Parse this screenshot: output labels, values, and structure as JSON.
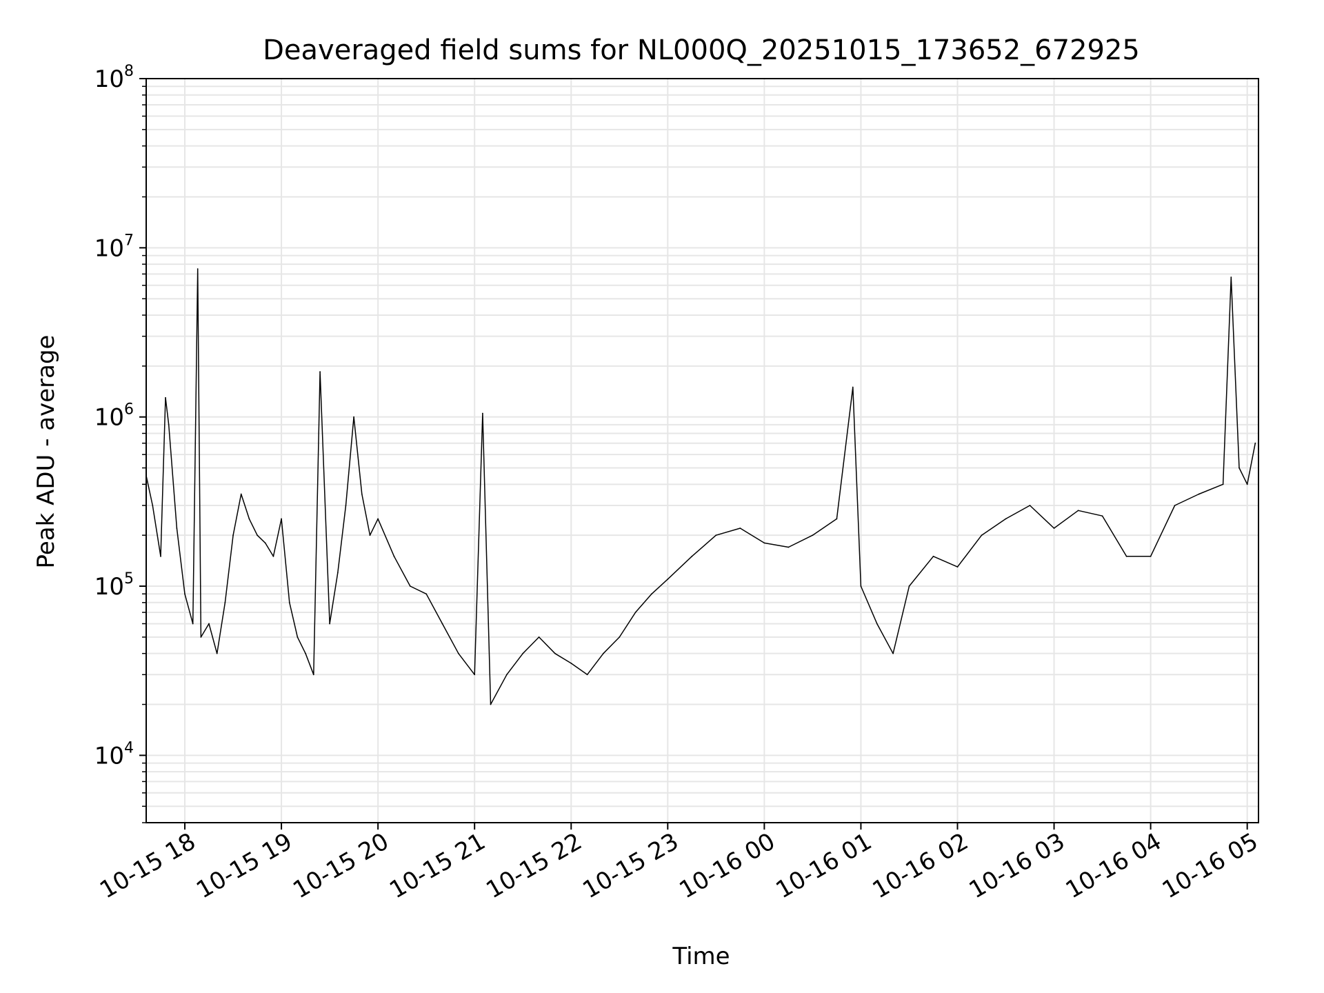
{
  "chart_data": {
    "type": "line",
    "title": "Deaveraged field sums for NL000Q_20251015_173652_672925",
    "xlabel": "Time",
    "ylabel": "Peak ADU - average",
    "y_scale": "log",
    "ylim": [
      4000,
      100000000
    ],
    "xlim": [
      "2025-10-15 17:36",
      "2025-10-16 05:07"
    ],
    "x_ticks": [
      {
        "label": "10-15 18",
        "time": "2025-10-15 18:00"
      },
      {
        "label": "10-15 19",
        "time": "2025-10-15 19:00"
      },
      {
        "label": "10-15 20",
        "time": "2025-10-15 20:00"
      },
      {
        "label": "10-15 21",
        "time": "2025-10-15 21:00"
      },
      {
        "label": "10-15 22",
        "time": "2025-10-15 22:00"
      },
      {
        "label": "10-15 23",
        "time": "2025-10-15 23:00"
      },
      {
        "label": "10-16 00",
        "time": "2025-10-16 00:00"
      },
      {
        "label": "10-16 01",
        "time": "2025-10-16 01:00"
      },
      {
        "label": "10-16 02",
        "time": "2025-10-16 02:00"
      },
      {
        "label": "10-16 03",
        "time": "2025-10-16 03:00"
      },
      {
        "label": "10-16 04",
        "time": "2025-10-16 04:00"
      },
      {
        "label": "10-16 05",
        "time": "2025-10-16 05:00"
      }
    ],
    "y_ticks": [
      {
        "base": "10",
        "exp": "4",
        "value": 10000
      },
      {
        "base": "10",
        "exp": "5",
        "value": 100000
      },
      {
        "base": "10",
        "exp": "6",
        "value": 1000000
      },
      {
        "base": "10",
        "exp": "7",
        "value": 10000000
      },
      {
        "base": "10",
        "exp": "8",
        "value": 100000000
      }
    ],
    "grid": true,
    "line_color": "#000000",
    "grid_color": "#e6e6e6",
    "series": [
      {
        "x": [
          "2025-10-15 17:36",
          "2025-10-15 17:40",
          "2025-10-15 17:45",
          "2025-10-15 17:48",
          "2025-10-15 17:50",
          "2025-10-15 17:55",
          "2025-10-15 18:00",
          "2025-10-15 18:05",
          "2025-10-15 18:08",
          "2025-10-15 18:10",
          "2025-10-15 18:15",
          "2025-10-15 18:20",
          "2025-10-15 18:25",
          "2025-10-15 18:30",
          "2025-10-15 18:35",
          "2025-10-15 18:40",
          "2025-10-15 18:45",
          "2025-10-15 18:50",
          "2025-10-15 18:55",
          "2025-10-15 19:00",
          "2025-10-15 19:05",
          "2025-10-15 19:10",
          "2025-10-15 19:15",
          "2025-10-15 19:20",
          "2025-10-15 19:24",
          "2025-10-15 19:30",
          "2025-10-15 19:35",
          "2025-10-15 19:40",
          "2025-10-15 19:45",
          "2025-10-15 19:50",
          "2025-10-15 19:55",
          "2025-10-15 20:00",
          "2025-10-15 20:10",
          "2025-10-15 20:20",
          "2025-10-15 20:30",
          "2025-10-15 20:40",
          "2025-10-15 20:50",
          "2025-10-15 21:00",
          "2025-10-15 21:05",
          "2025-10-15 21:10",
          "2025-10-15 21:20",
          "2025-10-15 21:30",
          "2025-10-15 21:40",
          "2025-10-15 21:50",
          "2025-10-15 22:00",
          "2025-10-15 22:10",
          "2025-10-15 22:20",
          "2025-10-15 22:30",
          "2025-10-15 22:40",
          "2025-10-15 22:50",
          "2025-10-15 23:00",
          "2025-10-15 23:15",
          "2025-10-15 23:30",
          "2025-10-15 23:45",
          "2025-10-16 00:00",
          "2025-10-16 00:15",
          "2025-10-16 00:30",
          "2025-10-16 00:45",
          "2025-10-16 00:55",
          "2025-10-16 01:00",
          "2025-10-16 01:10",
          "2025-10-16 01:20",
          "2025-10-16 01:30",
          "2025-10-16 01:45",
          "2025-10-16 02:00",
          "2025-10-16 02:15",
          "2025-10-16 02:30",
          "2025-10-16 02:45",
          "2025-10-16 03:00",
          "2025-10-16 03:15",
          "2025-10-16 03:30",
          "2025-10-16 03:45",
          "2025-10-16 04:00",
          "2025-10-16 04:15",
          "2025-10-16 04:30",
          "2025-10-16 04:45",
          "2025-10-16 04:50",
          "2025-10-16 04:55",
          "2025-10-16 05:00",
          "2025-10-16 05:05"
        ],
        "y": [
          450000,
          300000,
          150000,
          1300000,
          900000,
          220000,
          90000,
          60000,
          7500000,
          50000,
          60000,
          40000,
          80000,
          200000,
          350000,
          250000,
          200000,
          180000,
          150000,
          250000,
          80000,
          50000,
          40000,
          30000,
          1850000,
          60000,
          120000,
          300000,
          1000000,
          350000,
          200000,
          250000,
          150000,
          100000,
          90000,
          60000,
          40000,
          30000,
          1050000,
          20000,
          30000,
          40000,
          50000,
          40000,
          35000,
          30000,
          40000,
          50000,
          70000,
          90000,
          110000,
          150000,
          200000,
          220000,
          180000,
          170000,
          200000,
          250000,
          1500000,
          100000,
          60000,
          40000,
          100000,
          150000,
          130000,
          200000,
          250000,
          300000,
          220000,
          280000,
          260000,
          150000,
          150000,
          300000,
          350000,
          400000,
          6700000,
          500000,
          400000,
          700000
        ]
      }
    ]
  }
}
